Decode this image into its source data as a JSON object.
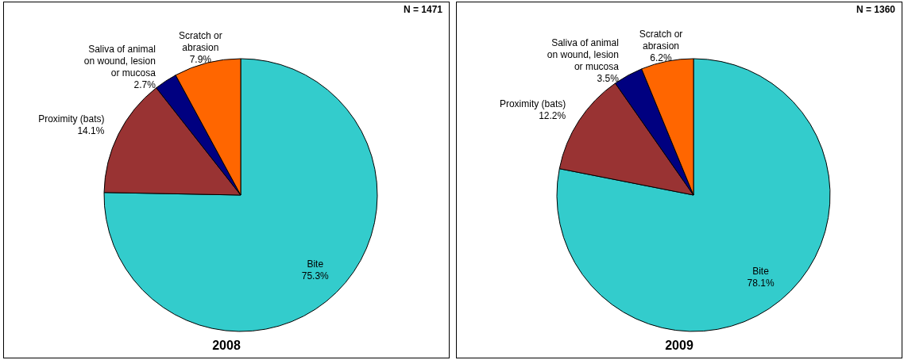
{
  "chart_data": [
    {
      "type": "pie",
      "title": "2008",
      "annotations": [
        "N = 1471"
      ],
      "categories": [
        "Bite",
        "Proximity (bats)",
        "Saliva of animal on wound, lesion or mucosa",
        "Scratch or abrasion"
      ],
      "values": [
        75.3,
        14.1,
        2.7,
        7.9
      ],
      "value_labels": [
        "75.3%",
        "14.1%",
        "2.7%",
        "7.9%"
      ],
      "colors": [
        "#33cccc",
        "#993333",
        "#000080",
        "#ff6600"
      ]
    },
    {
      "type": "pie",
      "title": "2009",
      "annotations": [
        "N = 1360"
      ],
      "categories": [
        "Bite",
        "Proximity (bats)",
        "Saliva of animal on wound, lesion or mucosa",
        "Scratch or abrasion"
      ],
      "values": [
        78.1,
        12.2,
        3.5,
        6.2
      ],
      "value_labels": [
        "78.1%",
        "12.2%",
        "3.5%",
        "6.2%"
      ],
      "colors": [
        "#33cccc",
        "#993333",
        "#000080",
        "#ff6600"
      ]
    }
  ]
}
